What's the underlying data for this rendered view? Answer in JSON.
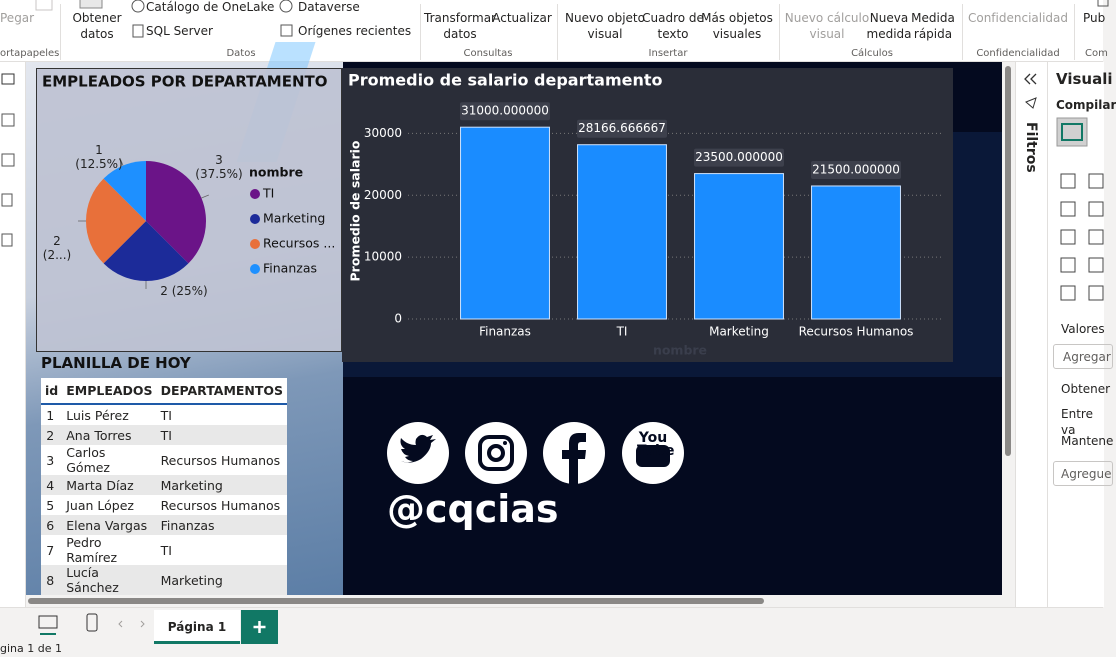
{
  "ribbon": {
    "paste": "Pegar",
    "clipboard_group": "ortapapeles",
    "get_data": "Obtener\ndatos",
    "onelake": "Catálogo de OneLake",
    "sql_server": "SQL Server",
    "dataverse": "Dataverse",
    "recent_sources": "Orígenes recientes",
    "data_group": "Datos",
    "transform": "Transformar\ndatos",
    "refresh": "Actualizar",
    "queries_group": "Consultas",
    "new_visual": "Nuevo objeto\nvisual",
    "text_box": "Cuadro de\ntexto",
    "more_visuals": "Más objetos\nvisuales",
    "insert_group": "Insertar",
    "visual_calc": "Nuevo cálculo\nvisual",
    "new_measure": "Nueva\nmedida",
    "quick_measure": "Medida\nrápida",
    "calc_group": "Cálculos",
    "sensitivity": "Confidencialidad",
    "sensitivity_group": "Confidencialidad",
    "publish": "Pub",
    "share_group": "Com"
  },
  "chart_data": [
    {
      "type": "pie",
      "title": "EMPLEADOS POR DEPARTAMENTO",
      "legend_title": "nombre",
      "categories": [
        "TI",
        "Marketing",
        "Recursos ...",
        "Finanzas"
      ],
      "values": [
        3,
        2,
        2,
        1
      ],
      "value_labels": [
        "3\n(37.5%)",
        "2 (25%)",
        "2\n(2...)",
        "1\n(12.5%)"
      ],
      "colors": [
        "#6b1488",
        "#1c2b99",
        "#e8703a",
        "#1e90ff"
      ],
      "legend": "right"
    },
    {
      "type": "bar",
      "title": "Promedio de salario departamento",
      "x_label": "nombre",
      "y_label": "Promedio de salario",
      "categories": [
        "Finanzas",
        "TI",
        "Marketing",
        "Recursos Humanos"
      ],
      "values": [
        31000,
        28166.666667,
        23500,
        21500
      ],
      "value_labels": [
        "31000.000000",
        "28166.666667",
        "23500.000000",
        "21500.000000"
      ],
      "color": "#1a8cff",
      "ylim": [
        0,
        32000
      ],
      "yticks": [
        0,
        10000,
        20000,
        30000
      ],
      "grid": true
    }
  ],
  "table": {
    "title": "PLANILLA DE HOY",
    "columns": [
      "id",
      "EMPLEADOS",
      "DEPARTAMENTOS"
    ],
    "rows": [
      [
        1,
        "Luis Pérez",
        "TI"
      ],
      [
        2,
        "Ana Torres",
        "TI"
      ],
      [
        3,
        "Carlos Gómez",
        "Recursos Humanos"
      ],
      [
        4,
        "Marta Díaz",
        "Marketing"
      ],
      [
        5,
        "Juan López",
        "Recursos Humanos"
      ],
      [
        6,
        "Elena Vargas",
        "Finanzas"
      ],
      [
        7,
        "Pedro Ramírez",
        "TI"
      ],
      [
        8,
        "Lucía Sánchez",
        "Marketing"
      ]
    ]
  },
  "social": {
    "handle": "@cqcias",
    "youtube_logo": "You\nTube"
  },
  "pages": {
    "tab": "Página 1",
    "status": "gina 1 de 1"
  },
  "pane": {
    "filters": "Filtros",
    "title": "Visuali",
    "build": "Compilar",
    "values": "Valores",
    "add_data": "Agregar",
    "drill": "Obtener",
    "drill_option": "Entre va",
    "keep": "Mantene",
    "add_fields": "Agregue"
  }
}
